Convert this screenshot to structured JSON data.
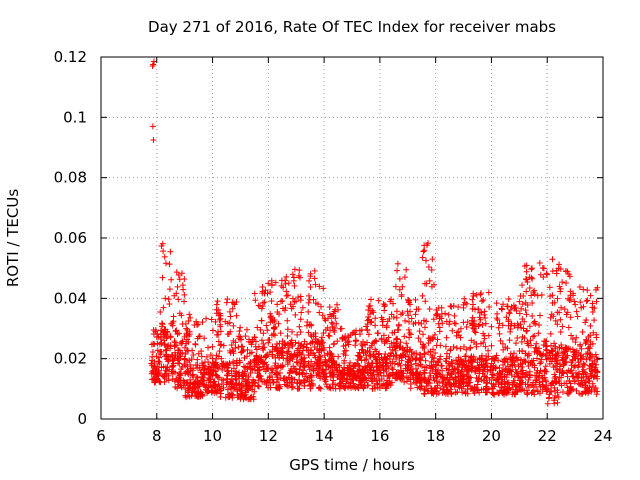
{
  "chart_data": {
    "type": "scatter",
    "title": "Day 271 of 2016, Rate Of TEC Index for receiver mabs",
    "xlabel": "GPS time / hours",
    "ylabel": "ROTI / TECUs",
    "xlim": [
      6,
      24
    ],
    "ylim": [
      0,
      0.12
    ],
    "xticks": [
      6,
      8,
      10,
      12,
      14,
      16,
      18,
      20,
      22,
      24
    ],
    "xtick_labels": [
      "6",
      "8",
      "10",
      "12",
      "14",
      "16",
      "18",
      "20",
      "22",
      "24"
    ],
    "yticks": [
      0,
      0.02,
      0.04,
      0.06,
      0.08,
      0.1,
      0.12
    ],
    "ytick_labels": [
      "0",
      "0.02",
      "0.04",
      "0.06",
      "0.08",
      "0.1",
      "0.12"
    ],
    "grid": true,
    "marker": "+",
    "series_color": "#ff0000",
    "series": [
      {
        "name": "ROTI",
        "outliers": [
          [
            7.85,
            0.117
          ],
          [
            7.87,
            0.1175
          ],
          [
            7.9,
            0.1185
          ],
          [
            7.86,
            0.097
          ],
          [
            7.88,
            0.0925
          ]
        ],
        "envelope": [
          {
            "from": 7.8,
            "to": 8.0,
            "min": 0.012,
            "max": 0.03
          },
          {
            "from": 8.0,
            "to": 8.5,
            "min": 0.012,
            "max": 0.06
          },
          {
            "from": 8.5,
            "to": 9.0,
            "min": 0.01,
            "max": 0.05
          },
          {
            "from": 9.0,
            "to": 10.0,
            "min": 0.007,
            "max": 0.035
          },
          {
            "from": 10.0,
            "to": 11.0,
            "min": 0.007,
            "max": 0.04
          },
          {
            "from": 11.0,
            "to": 11.5,
            "min": 0.006,
            "max": 0.03
          },
          {
            "from": 11.5,
            "to": 12.5,
            "min": 0.01,
            "max": 0.046
          },
          {
            "from": 12.5,
            "to": 14.0,
            "min": 0.01,
            "max": 0.05
          },
          {
            "from": 14.0,
            "to": 14.5,
            "min": 0.01,
            "max": 0.04
          },
          {
            "from": 14.5,
            "to": 15.5,
            "min": 0.01,
            "max": 0.03
          },
          {
            "from": 15.5,
            "to": 16.5,
            "min": 0.01,
            "max": 0.04
          },
          {
            "from": 16.5,
            "to": 17.0,
            "min": 0.012,
            "max": 0.052
          },
          {
            "from": 17.0,
            "to": 17.5,
            "min": 0.01,
            "max": 0.04
          },
          {
            "from": 17.5,
            "to": 18.0,
            "min": 0.008,
            "max": 0.059
          },
          {
            "from": 18.0,
            "to": 19.0,
            "min": 0.008,
            "max": 0.038
          },
          {
            "from": 19.0,
            "to": 20.0,
            "min": 0.008,
            "max": 0.042
          },
          {
            "from": 20.0,
            "to": 21.0,
            "min": 0.008,
            "max": 0.04
          },
          {
            "from": 21.0,
            "to": 22.0,
            "min": 0.008,
            "max": 0.053
          },
          {
            "from": 22.0,
            "to": 22.5,
            "min": 0.005,
            "max": 0.053
          },
          {
            "from": 22.5,
            "to": 23.0,
            "min": 0.008,
            "max": 0.05
          },
          {
            "from": 23.0,
            "to": 23.8,
            "min": 0.008,
            "max": 0.044
          }
        ]
      }
    ]
  }
}
